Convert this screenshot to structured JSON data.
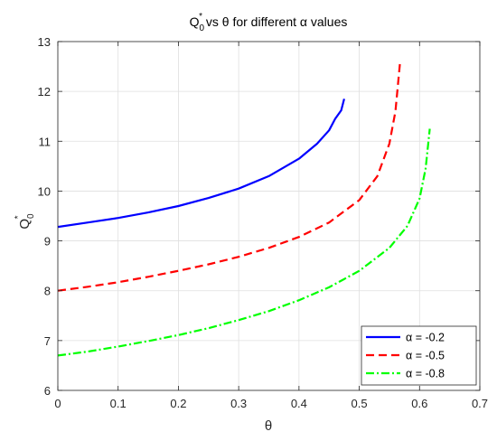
{
  "chart_data": {
    "type": "line",
    "title": "Q",
    "title_sub": "0",
    "title_sup": "*",
    "title_rest": " vs θ for different α values",
    "xlabel": "θ",
    "ylabel": "Q",
    "ylabel_sub": "0",
    "ylabel_sup": "*",
    "xlim": [
      0,
      0.7
    ],
    "ylim": [
      6,
      13
    ],
    "xticks": [
      "0",
      "0.1",
      "0.2",
      "0.3",
      "0.4",
      "0.5",
      "0.6",
      "0.7"
    ],
    "yticks": [
      "6",
      "7",
      "8",
      "9",
      "10",
      "11",
      "12",
      "13"
    ],
    "grid": true,
    "legend_location": "bottom-right",
    "series": [
      {
        "name": "α = -0.2",
        "color": "#0000ff",
        "style": "solid",
        "x": [
          0,
          0.05,
          0.1,
          0.15,
          0.2,
          0.25,
          0.3,
          0.35,
          0.4,
          0.43,
          0.45,
          0.46,
          0.47,
          0.475
        ],
        "y": [
          9.28,
          9.37,
          9.46,
          9.57,
          9.7,
          9.86,
          10.05,
          10.3,
          10.65,
          10.95,
          11.22,
          11.45,
          11.62,
          11.85
        ]
      },
      {
        "name": "α = -0.5",
        "color": "#ff0000",
        "style": "dashed",
        "x": [
          0,
          0.05,
          0.1,
          0.15,
          0.2,
          0.25,
          0.3,
          0.35,
          0.4,
          0.45,
          0.5,
          0.53,
          0.55,
          0.56,
          0.568
        ],
        "y": [
          8.0,
          8.08,
          8.17,
          8.28,
          8.4,
          8.53,
          8.68,
          8.86,
          9.08,
          9.37,
          9.82,
          10.3,
          10.95,
          11.6,
          12.62
        ]
      },
      {
        "name": "α = -0.8",
        "color": "#00ff00",
        "style": "dashdot",
        "x": [
          0,
          0.05,
          0.1,
          0.15,
          0.2,
          0.25,
          0.3,
          0.35,
          0.4,
          0.45,
          0.5,
          0.55,
          0.58,
          0.6,
          0.61,
          0.617
        ],
        "y": [
          6.7,
          6.78,
          6.88,
          6.99,
          7.11,
          7.25,
          7.41,
          7.59,
          7.81,
          8.07,
          8.4,
          8.86,
          9.3,
          9.85,
          10.45,
          11.25
        ]
      }
    ]
  }
}
